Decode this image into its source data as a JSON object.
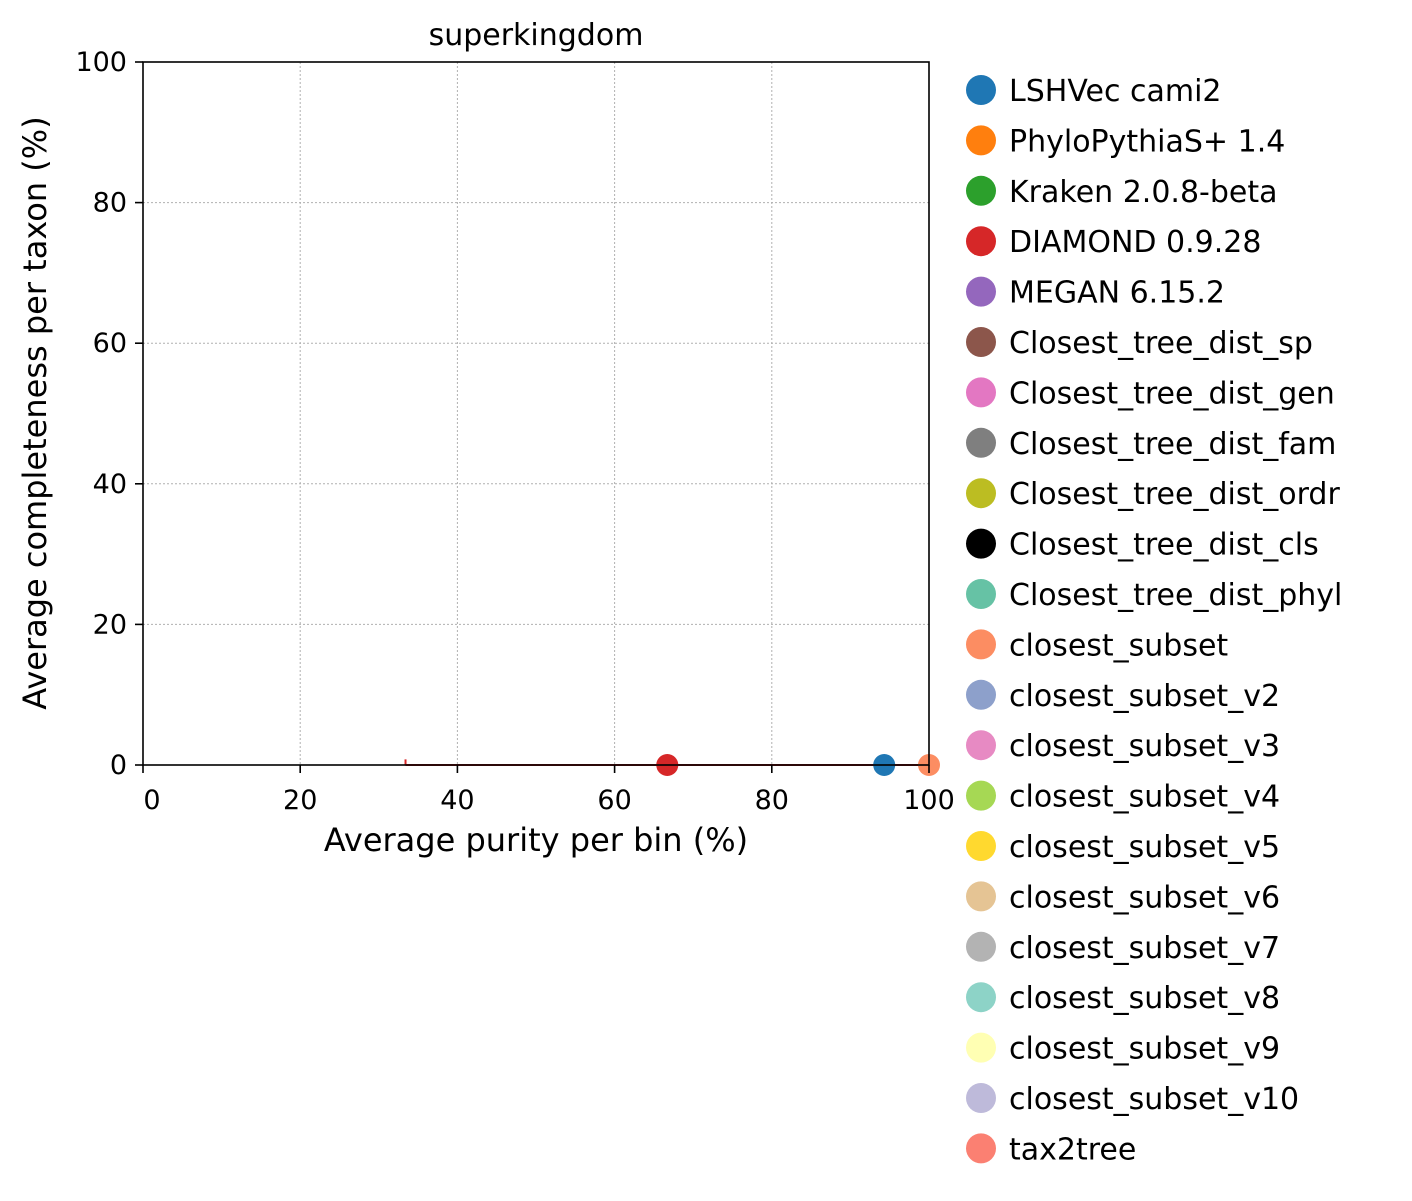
{
  "chart_data": {
    "type": "scatter",
    "title": "superkingdom",
    "xlabel": "Average purity per bin (%)",
    "ylabel": "Average completeness per taxon (%)",
    "xlim": [
      0,
      100
    ],
    "ylim": [
      0,
      100
    ],
    "xticks": [
      0,
      20,
      40,
      60,
      80,
      100
    ],
    "yticks": [
      0,
      20,
      40,
      60,
      80,
      100
    ],
    "grid": true,
    "legend_position": "outside-right",
    "series": [
      {
        "name": "LSHVec cami2",
        "color": "#1f77b4",
        "x": 94.3,
        "y": 0
      },
      {
        "name": "PhyloPythiaS+ 1.4",
        "color": "#ff7f0e",
        "x": null,
        "y": null
      },
      {
        "name": "Kraken 2.0.8-beta",
        "color": "#2ca02c",
        "x": null,
        "y": null
      },
      {
        "name": "DIAMOND 0.9.28",
        "color": "#d62728",
        "x": 66.7,
        "y": 0,
        "xerr": 33.3,
        "yerr": 0.8
      },
      {
        "name": "MEGAN 6.15.2",
        "color": "#9467bd",
        "x": null,
        "y": null
      },
      {
        "name": "Closest_tree_dist_sp",
        "color": "#8c564b",
        "x": null,
        "y": null
      },
      {
        "name": "Closest_tree_dist_gen",
        "color": "#e377c2",
        "x": null,
        "y": null
      },
      {
        "name": "Closest_tree_dist_fam",
        "color": "#7f7f7f",
        "x": null,
        "y": null
      },
      {
        "name": "Closest_tree_dist_ordr",
        "color": "#bcbd22",
        "x": null,
        "y": null
      },
      {
        "name": "Closest_tree_dist_cls",
        "color": "#000000",
        "x": null,
        "y": null
      },
      {
        "name": "Closest_tree_dist_phyl",
        "color": "#66c2a5",
        "x": null,
        "y": null
      },
      {
        "name": "closest_subset",
        "color": "#fc8d62",
        "x": 100,
        "y": 0
      },
      {
        "name": "closest_subset_v2",
        "color": "#8da0cb",
        "x": null,
        "y": null
      },
      {
        "name": "closest_subset_v3",
        "color": "#e78ac3",
        "x": null,
        "y": null
      },
      {
        "name": "closest_subset_v4",
        "color": "#a6d854",
        "x": null,
        "y": null
      },
      {
        "name": "closest_subset_v5",
        "color": "#ffd92f",
        "x": null,
        "y": null
      },
      {
        "name": "closest_subset_v6",
        "color": "#e5c494",
        "x": null,
        "y": null
      },
      {
        "name": "closest_subset_v7",
        "color": "#b3b3b3",
        "x": null,
        "y": null
      },
      {
        "name": "closest_subset_v8",
        "color": "#8dd3c7",
        "x": null,
        "y": null
      },
      {
        "name": "closest_subset_v9",
        "color": "#ffffb3",
        "x": null,
        "y": null
      },
      {
        "name": "closest_subset_v10",
        "color": "#bebada",
        "x": null,
        "y": null
      },
      {
        "name": "tax2tree",
        "color": "#fb8072",
        "x": null,
        "y": null
      }
    ]
  }
}
